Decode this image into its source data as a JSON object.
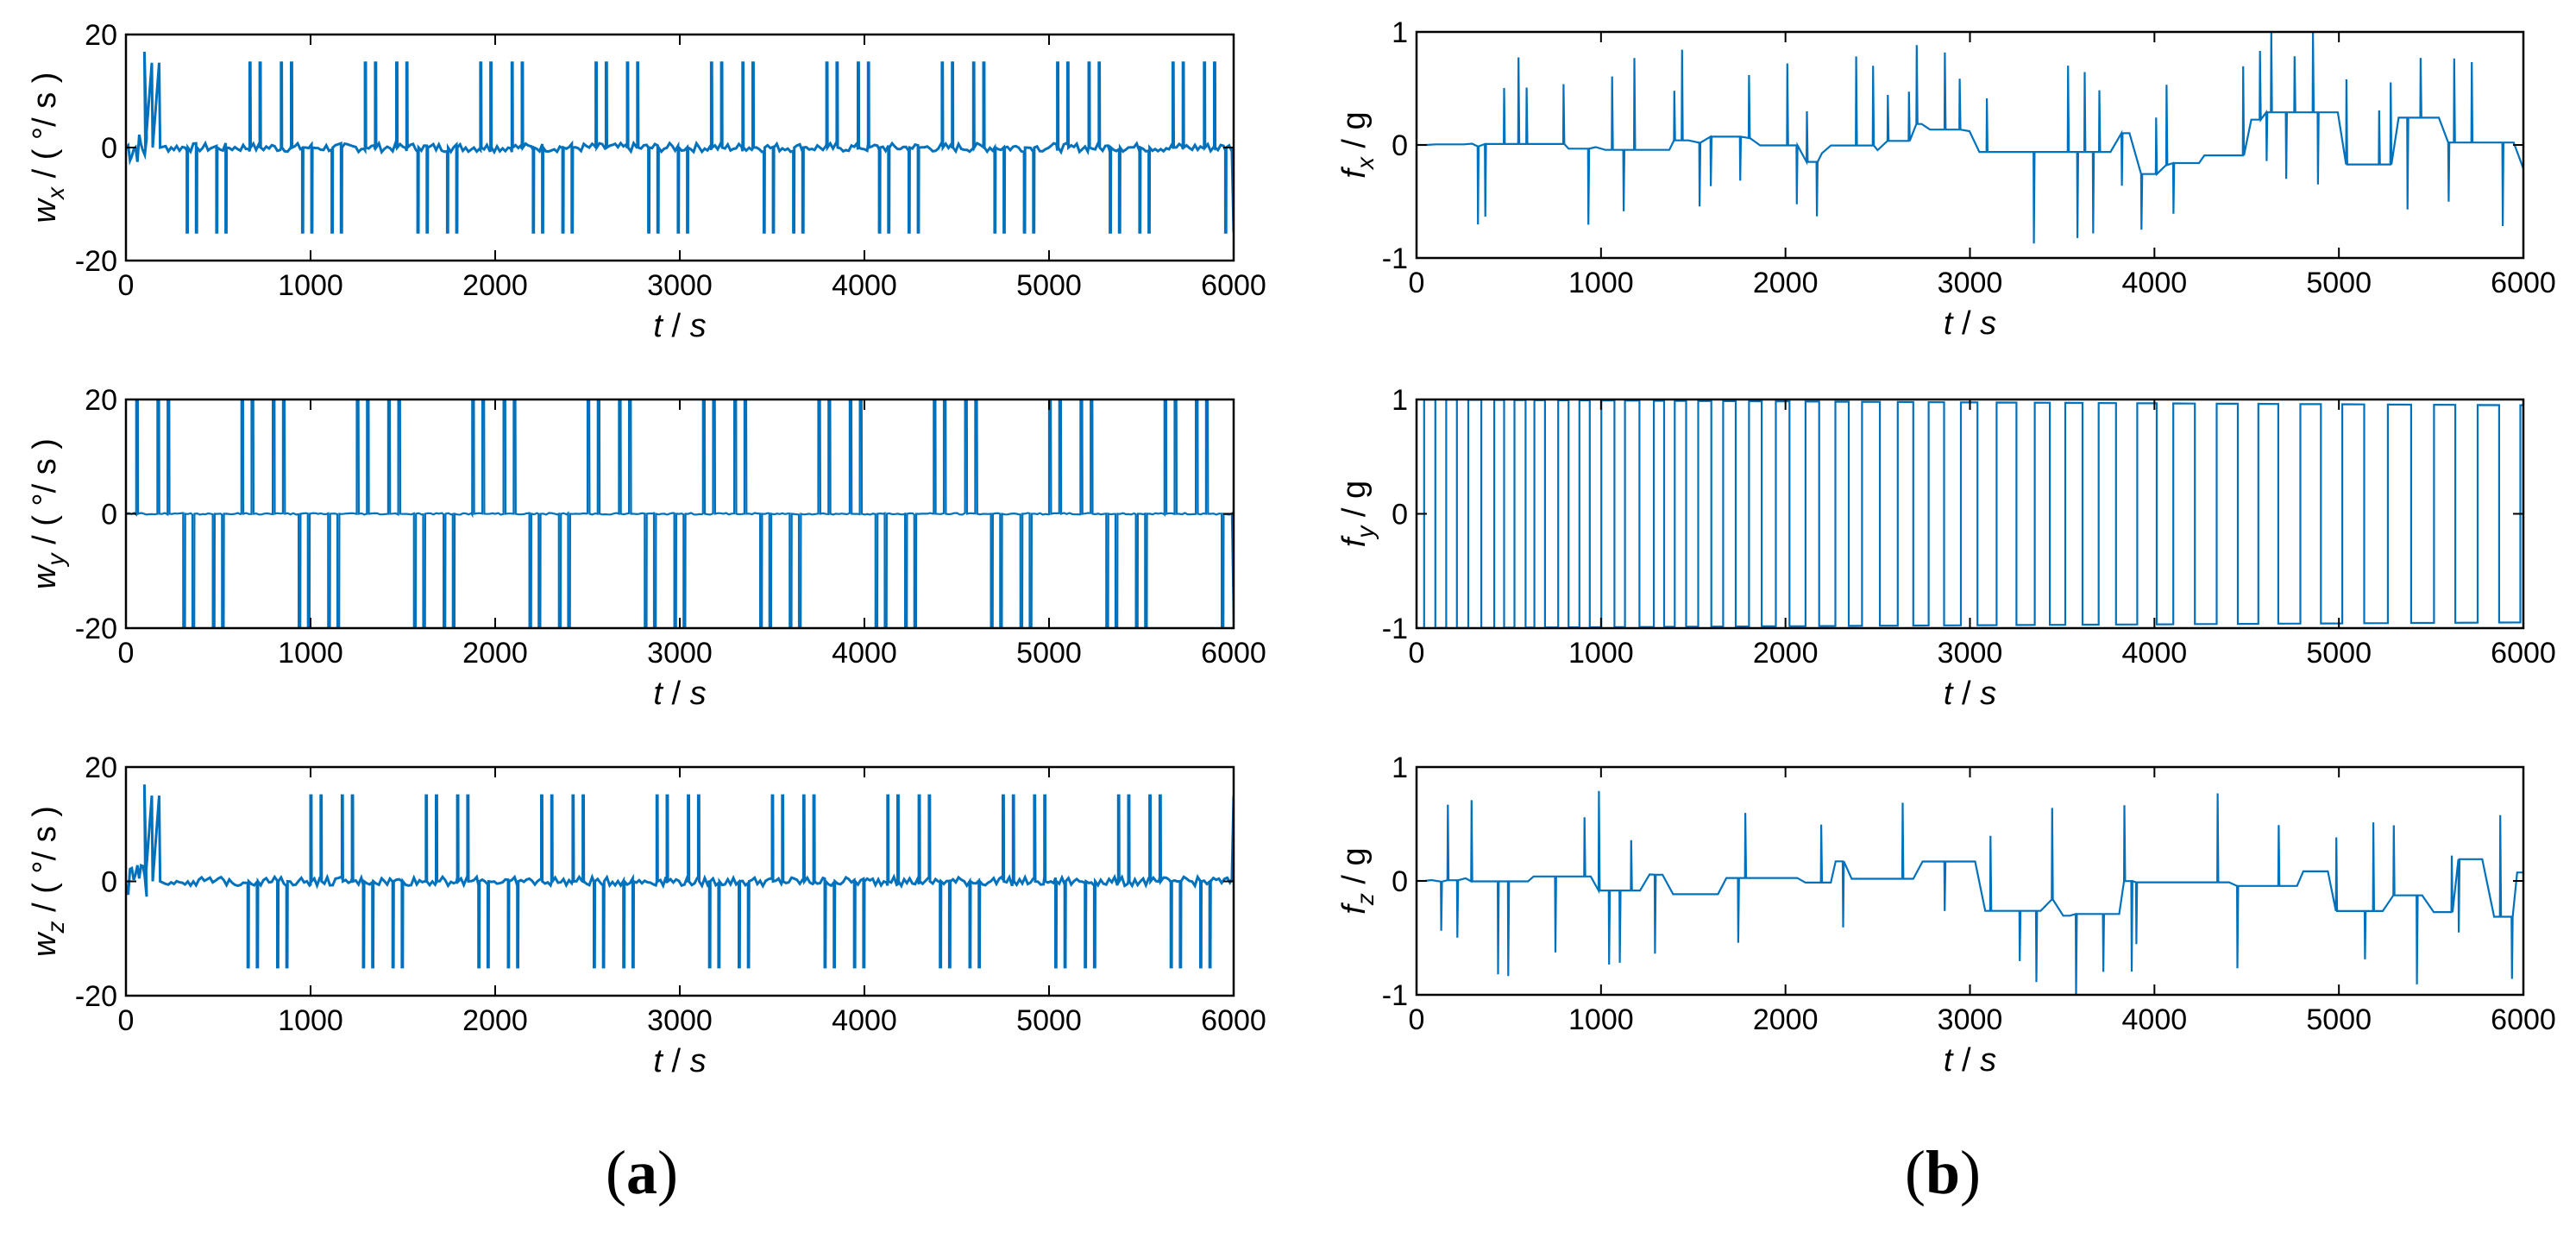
{
  "captions": {
    "a": "a",
    "b": "b"
  },
  "chart_data": [
    {
      "id": "wx",
      "type": "line",
      "panel": "a",
      "ylabel_main": "w",
      "ylabel_sub": "x",
      "ylabel_unit": "/ ( °/ s )",
      "xlabel_main": "t",
      "xlabel_unit": "/ s",
      "xlim": [
        0,
        6000
      ],
      "ylim": [
        -20,
        20
      ],
      "xticks": [
        "0",
        "1000",
        "2000",
        "3000",
        "4000",
        "5000",
        "6000"
      ],
      "yticks": [
        "20",
        "0",
        "-20"
      ],
      "ytick_values": [
        20,
        0,
        -20
      ],
      "color": "#0072BD",
      "pattern": "gyro_spiky",
      "spike": 15,
      "noise": 0.8,
      "start_burst": true,
      "end_value": -15
    },
    {
      "id": "wy",
      "type": "line",
      "panel": "a",
      "ylabel_main": "w",
      "ylabel_sub": "y",
      "ylabel_unit": "/ ( °/ s )",
      "xlabel_main": "t",
      "xlabel_unit": "/ s",
      "xlim": [
        0,
        6000
      ],
      "ylim": [
        -20,
        20
      ],
      "xticks": [
        "0",
        "1000",
        "2000",
        "3000",
        "4000",
        "5000",
        "6000"
      ],
      "yticks": [
        "20",
        "0",
        "-20"
      ],
      "ytick_values": [
        20,
        0,
        -20
      ],
      "color": "#0072BD",
      "pattern": "gyro_pulse",
      "spike": 20,
      "noise": 0.15,
      "start_burst": false,
      "end_value": -20
    },
    {
      "id": "wz",
      "type": "line",
      "panel": "a",
      "ylabel_main": "w",
      "ylabel_sub": "z",
      "ylabel_unit": "/ ( °/ s )",
      "xlabel_main": "t",
      "xlabel_unit": "/ s",
      "xlim": [
        0,
        6000
      ],
      "ylim": [
        -20,
        20
      ],
      "xticks": [
        "0",
        "1000",
        "2000",
        "3000",
        "4000",
        "5000",
        "6000"
      ],
      "yticks": [
        "20",
        "0",
        "-20"
      ],
      "ytick_values": [
        20,
        0,
        -20
      ],
      "color": "#0072BD",
      "pattern": "gyro_spiky_shift",
      "spike": 15,
      "noise": 0.8,
      "start_burst": true,
      "end_value": 15
    },
    {
      "id": "fx",
      "type": "line",
      "panel": "b",
      "ylabel_main": "f",
      "ylabel_sub": "x",
      "ylabel_unit": "/ g",
      "xlabel_main": "t",
      "xlabel_unit": "/ s",
      "xlim": [
        0,
        6000
      ],
      "ylim": [
        -1,
        1
      ],
      "xticks": [
        "0",
        "1000",
        "2000",
        "3000",
        "4000",
        "5000",
        "6000"
      ],
      "yticks": [
        "1",
        "0",
        "-1"
      ],
      "ytick_values": [
        1,
        0,
        -1
      ],
      "color": "#0072BD",
      "pattern": "accel_drift",
      "spike": 0.7,
      "drift": 0.3
    },
    {
      "id": "fy",
      "type": "line",
      "panel": "b",
      "ylabel_main": "f",
      "ylabel_sub": "y",
      "ylabel_unit": "/ g",
      "xlabel_main": "t",
      "xlabel_unit": "/ s",
      "xlim": [
        0,
        6000
      ],
      "ylim": [
        -1,
        1
      ],
      "xticks": [
        "0",
        "1000",
        "2000",
        "3000",
        "4000",
        "5000",
        "6000"
      ],
      "yticks": [
        "1",
        "0",
        "-1"
      ],
      "ytick_values": [
        1,
        0,
        -1
      ],
      "color": "#0072BD",
      "pattern": "accel_square",
      "spike": 1,
      "drift": 0.05
    },
    {
      "id": "fz",
      "type": "line",
      "panel": "b",
      "ylabel_main": "f",
      "ylabel_sub": "z",
      "ylabel_unit": "/ g",
      "xlabel_main": "t",
      "xlabel_unit": "/ s",
      "xlim": [
        0,
        6000
      ],
      "ylim": [
        -1,
        1
      ],
      "xticks": [
        "0",
        "1000",
        "2000",
        "3000",
        "4000",
        "5000",
        "6000"
      ],
      "yticks": [
        "1",
        "0",
        "-1"
      ],
      "ytick_values": [
        1,
        0,
        -1
      ],
      "color": "#0072BD",
      "pattern": "accel_drift",
      "spike": 0.75,
      "drift": 0.35
    }
  ]
}
